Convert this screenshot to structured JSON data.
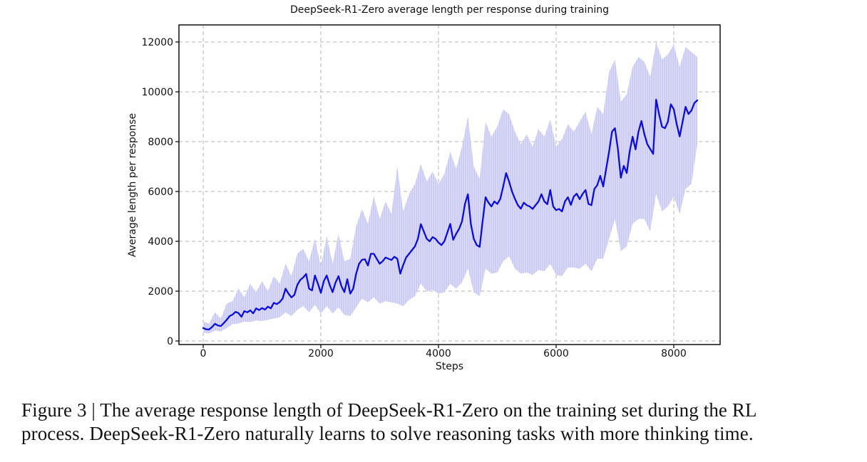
{
  "figure": {
    "caption_lines": [
      "Figure 3 | The average response length of DeepSeek-R1-Zero on the training set during the RL",
      "process. DeepSeek-R1-Zero naturally learns to solve reasoning tasks with more thinking time."
    ]
  },
  "colors": {
    "mean_line": "#0d0dd8",
    "band_fill": "#c9c9f4",
    "grid": "#b4b4b4",
    "axis": "#000000"
  },
  "chart_data": {
    "type": "line",
    "title": "DeepSeek-R1-Zero average length per response during training",
    "xlabel": "Steps",
    "ylabel": "Average length per response",
    "xlim": [
      -412,
      8788
    ],
    "ylim": [
      -143,
      12686
    ],
    "x_ticks": [
      0,
      2000,
      4000,
      6000,
      8000
    ],
    "y_ticks": [
      0,
      2000,
      4000,
      6000,
      8000,
      10000,
      12000
    ],
    "grid": "dashed-both-axes",
    "legend": "none",
    "series": [
      {
        "name": "mean response length",
        "color": "#0d0dd8",
        "x": {
          "start": 0,
          "step": 50
        },
        "values": [
          520,
          470,
          460,
          560,
          690,
          620,
          600,
          720,
          850,
          1000,
          1060,
          1170,
          1120,
          970,
          1200,
          1150,
          1230,
          1110,
          1310,
          1240,
          1320,
          1260,
          1380,
          1310,
          1530,
          1480,
          1560,
          1700,
          2100,
          1900,
          1750,
          1850,
          2250,
          2450,
          2550,
          2690,
          2100,
          2030,
          2630,
          2300,
          1930,
          2400,
          2630,
          2250,
          1960,
          2350,
          2600,
          2200,
          1960,
          2480,
          1900,
          2100,
          2700,
          3100,
          3260,
          3280,
          3030,
          3500,
          3500,
          3300,
          3100,
          3200,
          3350,
          3300,
          3250,
          3380,
          3300,
          2700,
          3050,
          3350,
          3500,
          3650,
          3800,
          4100,
          4690,
          4400,
          4100,
          4000,
          4170,
          4100,
          3950,
          3850,
          4000,
          4350,
          4700,
          4060,
          4300,
          4500,
          4800,
          5500,
          5890,
          4700,
          4100,
          3850,
          3780,
          4800,
          5770,
          5550,
          5400,
          5600,
          5500,
          5700,
          6200,
          6740,
          6400,
          6000,
          5700,
          5450,
          5310,
          5550,
          5450,
          5400,
          5300,
          5450,
          5600,
          5890,
          5600,
          5490,
          6060,
          5400,
          5250,
          5300,
          5200,
          5600,
          5770,
          5460,
          5800,
          5910,
          5690,
          5900,
          6060,
          5500,
          5450,
          6100,
          6260,
          6630,
          6200,
          6900,
          7600,
          8400,
          8540,
          7700,
          6550,
          7030,
          6740,
          7600,
          8200,
          7690,
          8400,
          8830,
          8300,
          7900,
          7700,
          7510,
          9690,
          9100,
          8600,
          8540,
          8800,
          9500,
          9300,
          8700,
          8210,
          8800,
          9400,
          9110,
          9250,
          9550,
          9660
        ]
      },
      {
        "name": "per-step min-max band",
        "color": "#c9c9f4",
        "x": {
          "start": 0,
          "step": 100
        },
        "upper": [
          780,
          700,
          1150,
          900,
          1500,
          1600,
          2100,
          1750,
          2300,
          1950,
          2400,
          2000,
          2600,
          2300,
          3100,
          2600,
          3500,
          3700,
          3200,
          4100,
          3000,
          4200,
          3100,
          4300,
          3200,
          3300,
          4600,
          5300,
          4700,
          5800,
          4900,
          5600,
          5100,
          7000,
          5200,
          5900,
          6300,
          7100,
          6400,
          6800,
          6300,
          6700,
          7600,
          6900,
          7800,
          9000,
          7000,
          6500,
          8800,
          8200,
          8600,
          9300,
          9100,
          8400,
          7900,
          8300,
          7800,
          8500,
          8200,
          8900,
          7800,
          8100,
          8700,
          8400,
          8800,
          9200,
          8300,
          9400,
          9100,
          10800,
          11300,
          9600,
          9900,
          11000,
          11400,
          11200,
          10600,
          12000,
          11300,
          11500,
          11900,
          11000,
          11800,
          11600,
          11400
        ],
        "lower": [
          330,
          300,
          420,
          380,
          520,
          680,
          700,
          780,
          760,
          820,
          800,
          850,
          900,
          950,
          1150,
          1000,
          1250,
          1400,
          1150,
          1450,
          1100,
          1400,
          1100,
          1350,
          1050,
          1000,
          1350,
          1700,
          1550,
          1750,
          1500,
          1600,
          1550,
          1500,
          1400,
          1650,
          1800,
          2300,
          2000,
          2050,
          1900,
          1950,
          2300,
          2100,
          2350,
          2900,
          1950,
          1800,
          2900,
          2700,
          2750,
          3200,
          3400,
          2900,
          2700,
          2750,
          2650,
          2850,
          2800,
          3100,
          2650,
          2600,
          2950,
          2950,
          2900,
          3100,
          2800,
          3300,
          3300,
          4100,
          4900,
          3600,
          3800,
          4700,
          4900,
          4900,
          4400,
          5900,
          5200,
          5400,
          5800,
          5100,
          6100,
          6300,
          7900
        ]
      }
    ]
  }
}
